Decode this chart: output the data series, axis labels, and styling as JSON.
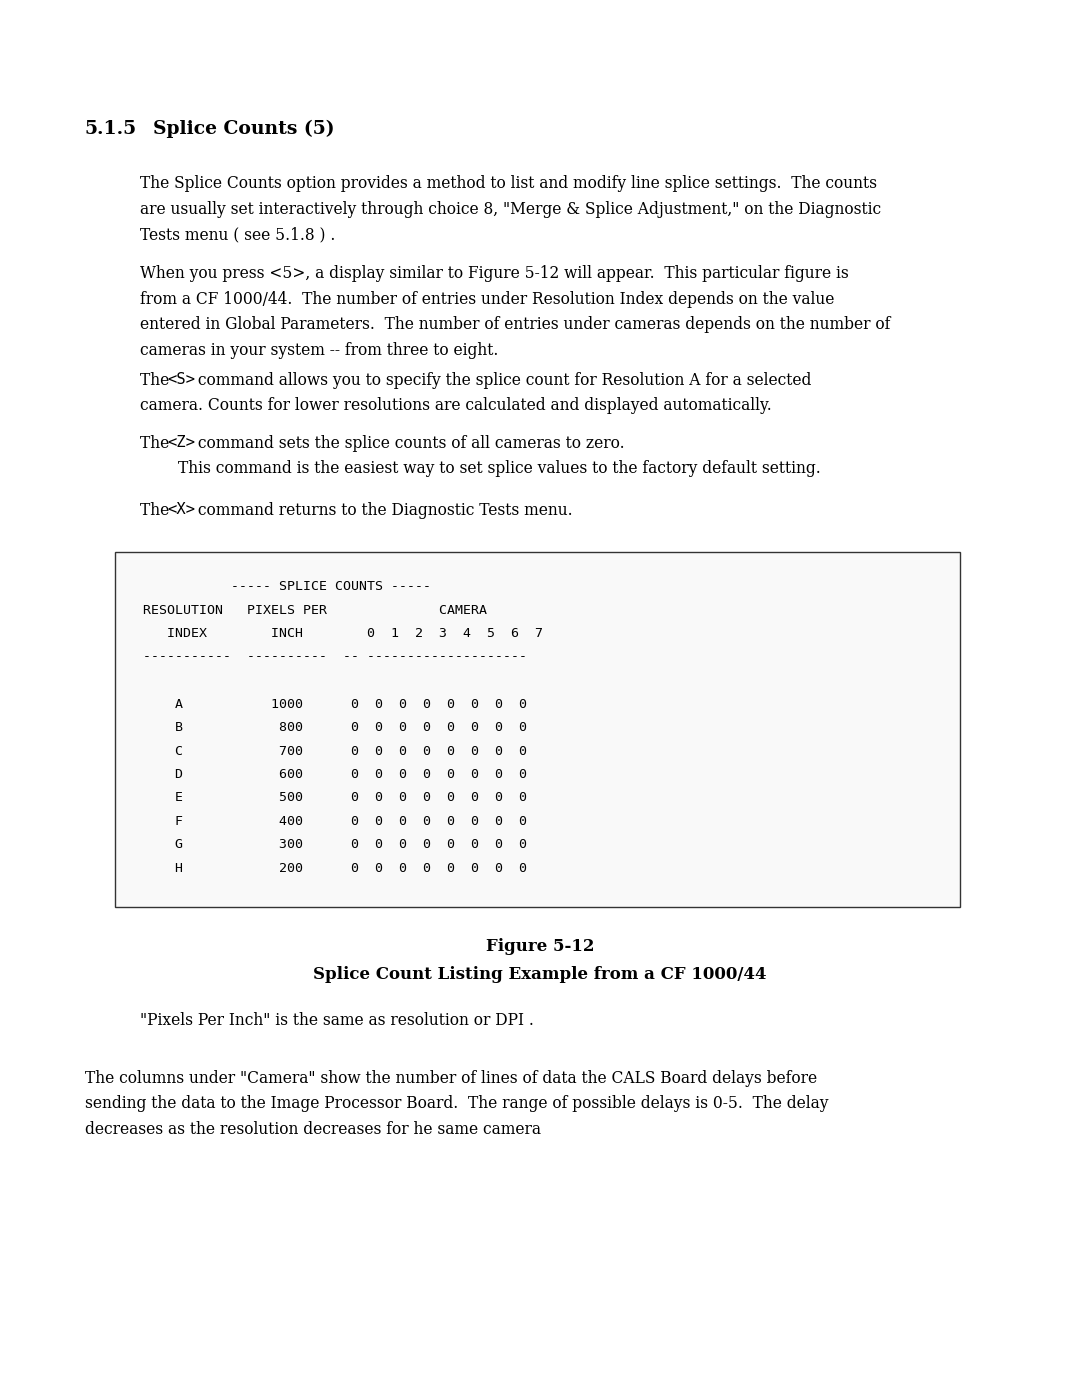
{
  "bg_color": "#ffffff",
  "text_color": "#000000",
  "section_number": "5.1.5",
  "section_title": "Splice Counts (5)",
  "para1_lines": [
    "The Splice Counts option provides a method to list and modify line splice settings.  The counts",
    "are usually set interactively through choice 8, \"Merge & Splice Adjustment,\" on the Diagnostic",
    "Tests menu ( see 5.1.8 ) ."
  ],
  "para2_lines": [
    "When you press <5>, a display similar to Figure 5-12 will appear.  This particular figure is",
    "from a CF 1000/44.  The number of entries under Resolution Index depends on the value",
    "entered in Global Parameters.  The number of entries under cameras depends on the number of",
    "cameras in your system -- from three to eight."
  ],
  "para3_line1_pre": "The ",
  "para3_cmd": "<S>",
  "para3_line1_post": " command allows you to specify the splice count for Resolution A for a selected",
  "para3_line2": "camera. Counts for lower resolutions are calculated and displayed automatically.",
  "para4_line1_pre": "The ",
  "para4_cmd": "<Z>",
  "para4_line1_post": " command sets the splice counts of all cameras to zero.",
  "para4_line2": "    This command is the easiest way to set splice values to the factory default setting.",
  "para5_line1_pre": "The ",
  "para5_cmd": "<X>",
  "para5_line1_post": " command returns to the Diagnostic Tests menu.",
  "box_lines": [
    "           ----- SPLICE COUNTS -----",
    "RESOLUTION   PIXELS PER              CAMERA",
    "   INDEX        INCH        0  1  2  3  4  5  6  7",
    "-----------  ----------  -- --------------------",
    "",
    "    A           1000      0  0  0  0  0  0  0  0",
    "    B            800      0  0  0  0  0  0  0  0",
    "    C            700      0  0  0  0  0  0  0  0",
    "    D            600      0  0  0  0  0  0  0  0",
    "    E            500      0  0  0  0  0  0  0  0",
    "    F            400      0  0  0  0  0  0  0  0",
    "    G            300      0  0  0  0  0  0  0  0",
    "    H            200      0  0  0  0  0  0  0  0"
  ],
  "fig_caption_line1": "Figure 5-12",
  "fig_caption_line2": "Splice Count Listing Example from a CF 1000/44",
  "para6": "\"Pixels Per Inch\" is the same as resolution or DPI .",
  "para7_lines": [
    "The columns under \"Camera\" show the number of lines of data the CALS Board delays before",
    "sending the data to the Image Processor Board.  The range of possible delays is 0-5.  The delay",
    "decreases as the resolution decreases for he same camera"
  ],
  "page_width": 10.8,
  "page_height": 13.97,
  "dpi": 100
}
